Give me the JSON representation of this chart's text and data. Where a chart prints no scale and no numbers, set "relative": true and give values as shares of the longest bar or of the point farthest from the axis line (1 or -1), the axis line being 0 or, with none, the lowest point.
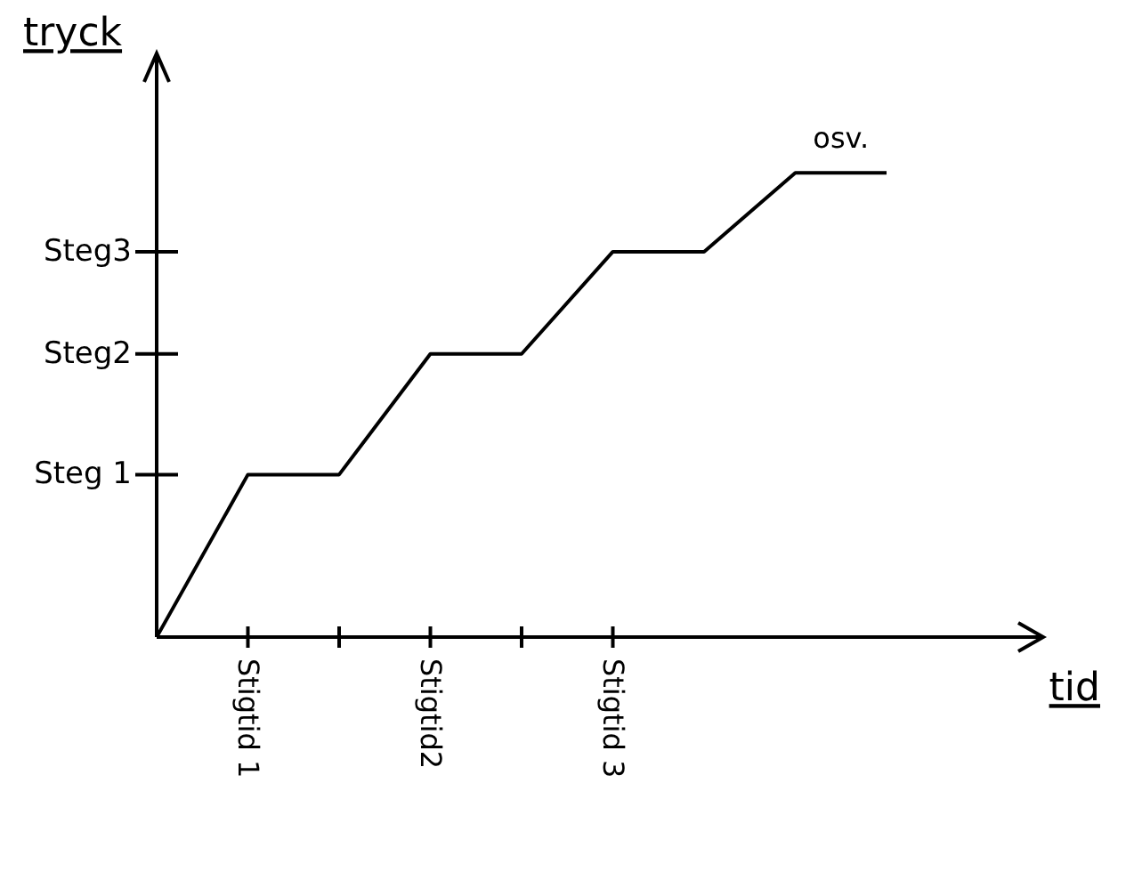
{
  "chart_data": {
    "type": "line",
    "xlabel": "tid",
    "ylabel": "tryck",
    "relative": true,
    "categories": [
      null,
      "Stigtid 1",
      null,
      "Stigtid2",
      null,
      "Stigtid 3",
      null,
      null,
      null
    ],
    "series": [
      {
        "color": "#000000",
        "values": [
          0,
          0.35,
          0.35,
          0.61,
          0.61,
          0.83,
          0.83,
          1.0,
          1.0
        ]
      }
    ],
    "annotations": [
      "Steg 1",
      "Steg2",
      "Steg3",
      "osv."
    ],
    "grid": false,
    "legend": false,
    "marker": "none",
    "line_style": "solid"
  }
}
